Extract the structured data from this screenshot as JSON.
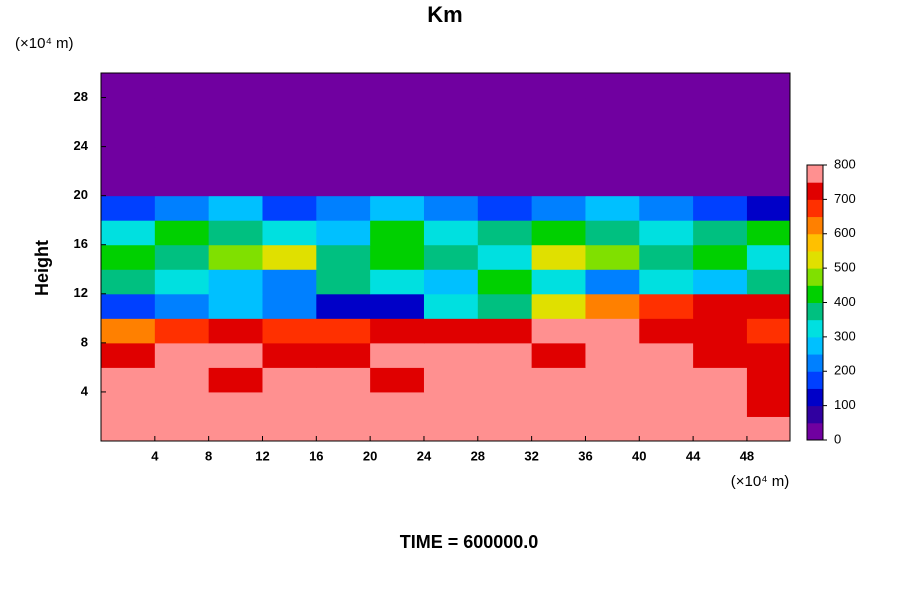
{
  "chart_data": {
    "type": "heatmap",
    "title": "Km",
    "ylabel": "Height",
    "x_unit": "(×10⁴ m)",
    "y_unit": "(×10⁴ m)",
    "footer": "TIME = 600000.0",
    "xlim": [
      0,
      51.2
    ],
    "ylim": [
      0,
      30
    ],
    "xticks": [
      4,
      8,
      12,
      16,
      20,
      24,
      28,
      32,
      36,
      40,
      44,
      48
    ],
    "yticks": [
      4,
      8,
      12,
      16,
      20,
      24,
      28
    ],
    "x": [
      2,
      6,
      10,
      14,
      18,
      22,
      26,
      30,
      34,
      38,
      42,
      46,
      50
    ],
    "y": [
      1,
      3,
      5,
      7,
      9,
      11,
      13,
      15,
      17,
      19,
      21,
      23,
      25,
      27,
      29
    ],
    "z": [
      [
        800,
        800,
        800,
        800,
        800,
        800,
        800,
        800,
        800,
        800,
        800,
        800,
        800
      ],
      [
        800,
        750,
        800,
        780,
        800,
        800,
        780,
        800,
        800,
        800,
        800,
        800,
        700
      ],
      [
        780,
        760,
        720,
        800,
        800,
        740,
        800,
        750,
        800,
        780,
        800,
        760,
        740
      ],
      [
        720,
        780,
        800,
        700,
        720,
        780,
        800,
        760,
        720,
        800,
        780,
        700,
        720
      ],
      [
        600,
        650,
        700,
        680,
        650,
        700,
        720,
        700,
        750,
        760,
        740,
        720,
        680
      ],
      [
        150,
        200,
        250,
        200,
        100,
        120,
        300,
        350,
        500,
        600,
        650,
        700,
        720
      ],
      [
        350,
        300,
        250,
        200,
        350,
        300,
        250,
        400,
        300,
        200,
        300,
        250,
        350
      ],
      [
        400,
        350,
        450,
        500,
        350,
        400,
        350,
        300,
        500,
        450,
        350,
        400,
        300
      ],
      [
        300,
        400,
        350,
        300,
        250,
        400,
        300,
        350,
        400,
        350,
        300,
        350,
        400
      ],
      [
        150,
        200,
        250,
        150,
        200,
        250,
        200,
        150,
        200,
        250,
        200,
        150,
        100
      ],
      [
        0,
        0,
        0,
        0,
        0,
        0,
        0,
        0,
        0,
        0,
        0,
        0,
        0
      ],
      [
        0,
        0,
        0,
        0,
        0,
        0,
        0,
        0,
        0,
        0,
        0,
        0,
        0
      ],
      [
        0,
        0,
        0,
        0,
        0,
        0,
        0,
        0,
        0,
        0,
        0,
        0,
        0
      ],
      [
        0,
        0,
        0,
        0,
        0,
        0,
        0,
        0,
        0,
        0,
        0,
        0,
        0
      ],
      [
        0,
        0,
        0,
        0,
        0,
        0,
        0,
        0,
        0,
        0,
        0,
        0,
        0
      ]
    ],
    "clim": [
      0,
      800
    ],
    "cticks": [
      0,
      100,
      200,
      300,
      400,
      500,
      600,
      700,
      800
    ],
    "colors": [
      "#7000a0",
      "#3000a0",
      "#0000c8",
      "#0040ff",
      "#0080ff",
      "#00c0ff",
      "#00e0e0",
      "#00c080",
      "#00d000",
      "#80e000",
      "#e0e000",
      "#ffc000",
      "#ff8000",
      "#ff3000",
      "#e00000",
      "#ff9090"
    ]
  }
}
